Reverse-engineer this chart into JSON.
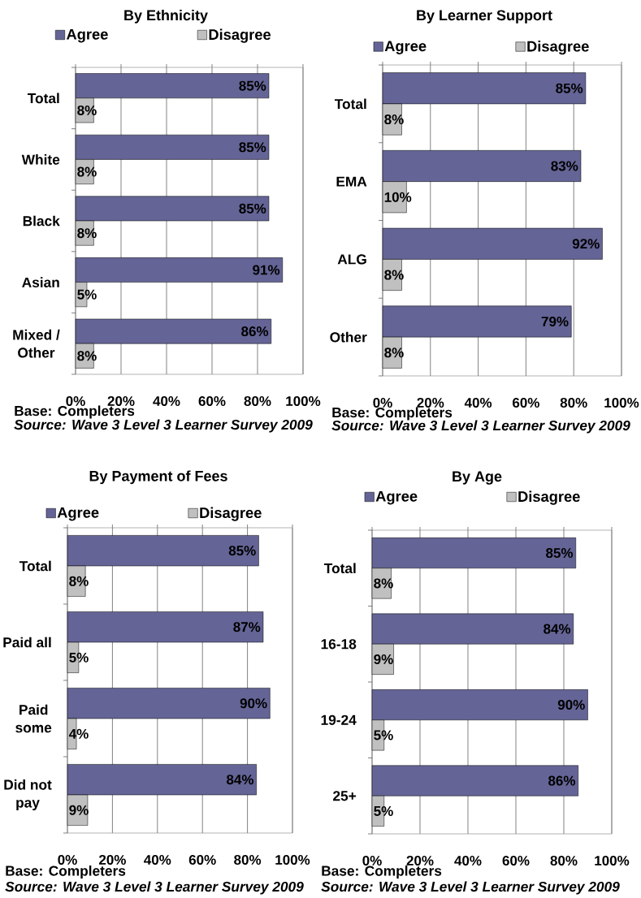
{
  "chart_data": [
    {
      "type": "bar",
      "orientation": "horizontal",
      "title": "By Ethnicity",
      "categories": [
        "Total",
        "White",
        "Black",
        "Asian",
        "Mixed / Other"
      ],
      "series": [
        {
          "name": "Agree",
          "color": "#646496",
          "values": [
            85,
            85,
            85,
            91,
            86
          ],
          "value_labels": [
            "85%",
            "85%",
            "85%",
            "91%",
            "86%"
          ]
        },
        {
          "name": "Disagree",
          "color": "#c0c0c0",
          "values": [
            8,
            8,
            8,
            5,
            8
          ],
          "value_labels": [
            "8%",
            "8%",
            "8%",
            "5%",
            "8%"
          ]
        }
      ],
      "xlim": [
        0,
        100
      ],
      "xticks": [
        {
          "value": 0,
          "label": "0%"
        },
        {
          "value": 20,
          "label": "20%"
        },
        {
          "value": 40,
          "label": "40%"
        },
        {
          "value": 60,
          "label": "60%"
        },
        {
          "value": 80,
          "label": "80%"
        },
        {
          "value": 100,
          "label": "100%"
        }
      ],
      "grid": "x",
      "legend": "top",
      "annotations": [
        "Base: Completers",
        "Source: Wave 3 Level 3 Learner Survey 2009"
      ]
    },
    {
      "type": "bar",
      "orientation": "horizontal",
      "title": "By Learner Support",
      "categories": [
        "Total",
        "EMA",
        "ALG",
        "Other"
      ],
      "series": [
        {
          "name": "Agree",
          "color": "#646496",
          "values": [
            85,
            83,
            92,
            79
          ],
          "value_labels": [
            "85%",
            "83%",
            "92%",
            "79%"
          ]
        },
        {
          "name": "Disagree",
          "color": "#c0c0c0",
          "values": [
            8,
            10,
            8,
            8
          ],
          "value_labels": [
            "8%",
            "10%",
            "8%",
            "8%"
          ]
        }
      ],
      "xlim": [
        0,
        100
      ],
      "xticks": [
        {
          "value": 0,
          "label": "0%"
        },
        {
          "value": 20,
          "label": "20%"
        },
        {
          "value": 40,
          "label": "40%"
        },
        {
          "value": 60,
          "label": "60%"
        },
        {
          "value": 80,
          "label": "80%"
        },
        {
          "value": 100,
          "label": "100%"
        }
      ],
      "grid": "x",
      "legend": "top",
      "annotations": [
        "Base: Completers",
        "Source: Wave 3 Level 3 Learner Survey 2009"
      ]
    },
    {
      "type": "bar",
      "orientation": "horizontal",
      "title": "By Payment of Fees",
      "categories": [
        "Total",
        "Paid all",
        "Paid some",
        "Did not pay"
      ],
      "series": [
        {
          "name": "Agree",
          "color": "#646496",
          "values": [
            85,
            87,
            90,
            84
          ],
          "value_labels": [
            "85%",
            "87%",
            "90%",
            "84%"
          ]
        },
        {
          "name": "Disagree",
          "color": "#c0c0c0",
          "values": [
            8,
            5,
            4,
            9
          ],
          "value_labels": [
            "8%",
            "5%",
            "4%",
            "9%"
          ]
        }
      ],
      "xlim": [
        0,
        100
      ],
      "xticks": [
        {
          "value": 0,
          "label": "0%"
        },
        {
          "value": 20,
          "label": "20%"
        },
        {
          "value": 40,
          "label": "40%"
        },
        {
          "value": 60,
          "label": "60%"
        },
        {
          "value": 80,
          "label": "80%"
        },
        {
          "value": 100,
          "label": "100%"
        }
      ],
      "grid": "x",
      "legend": "top",
      "annotations": [
        "Base: Completers",
        "Source: Wave 3 Level 3 Learner Survey 2009"
      ]
    },
    {
      "type": "bar",
      "orientation": "horizontal",
      "title": "By Age",
      "categories": [
        "Total",
        "16-18",
        "19-24",
        "25+"
      ],
      "series": [
        {
          "name": "Agree",
          "color": "#646496",
          "values": [
            85,
            84,
            90,
            86
          ],
          "value_labels": [
            "85%",
            "84%",
            "90%",
            "86%"
          ]
        },
        {
          "name": "Disagree",
          "color": "#c0c0c0",
          "values": [
            8,
            9,
            5,
            5
          ],
          "value_labels": [
            "8%",
            "9%",
            "5%",
            "5%"
          ]
        }
      ],
      "xlim": [
        0,
        100
      ],
      "xticks": [
        {
          "value": 0,
          "label": "0%"
        },
        {
          "value": 20,
          "label": "20%"
        },
        {
          "value": 40,
          "label": "40%"
        },
        {
          "value": 60,
          "label": "60%"
        },
        {
          "value": 80,
          "label": "80%"
        },
        {
          "value": 100,
          "label": "100%"
        }
      ],
      "grid": "x",
      "legend": "top",
      "annotations": [
        "Base: Completers",
        "Source: Wave 3 Level 3 Learner Survey 2009"
      ]
    }
  ]
}
